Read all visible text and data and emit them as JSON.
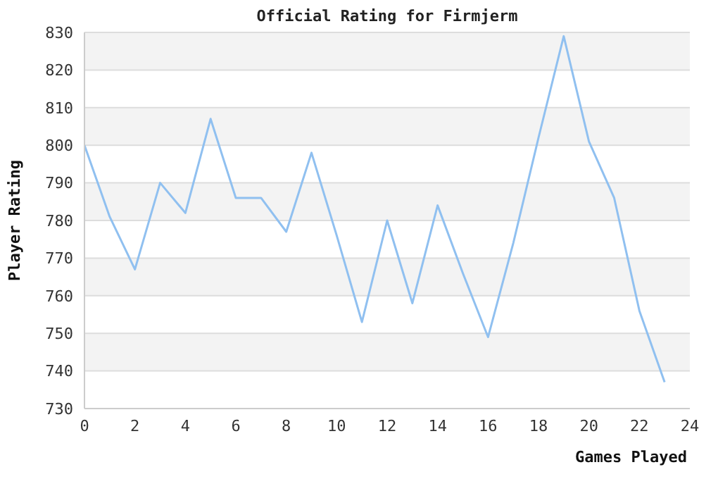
{
  "chart_data": {
    "type": "line",
    "title": "Official Rating for Firmjerm",
    "xlabel": "Games Played",
    "ylabel": "Player Rating",
    "x": [
      0,
      1,
      2,
      3,
      4,
      5,
      6,
      7,
      8,
      9,
      10,
      11,
      12,
      13,
      14,
      15,
      16,
      17,
      18,
      19,
      20,
      21,
      22,
      23
    ],
    "series": [
      {
        "color": "#90c0f0",
        "values": [
          800,
          781,
          767,
          790,
          782,
          807,
          786,
          786,
          777,
          798,
          776,
          753,
          780,
          758,
          784,
          766,
          749,
          774,
          802,
          829,
          801,
          786,
          756,
          737
        ]
      }
    ],
    "xlim": [
      0,
      24
    ],
    "xticks": [
      0,
      2,
      4,
      6,
      8,
      10,
      12,
      14,
      16,
      18,
      20,
      22,
      24
    ],
    "ylim": [
      730,
      830
    ],
    "yticks": [
      730,
      740,
      750,
      760,
      770,
      780,
      790,
      800,
      810,
      820,
      830
    ],
    "grid": "y",
    "marker": "none",
    "line_style": "solid",
    "legend": false
  }
}
